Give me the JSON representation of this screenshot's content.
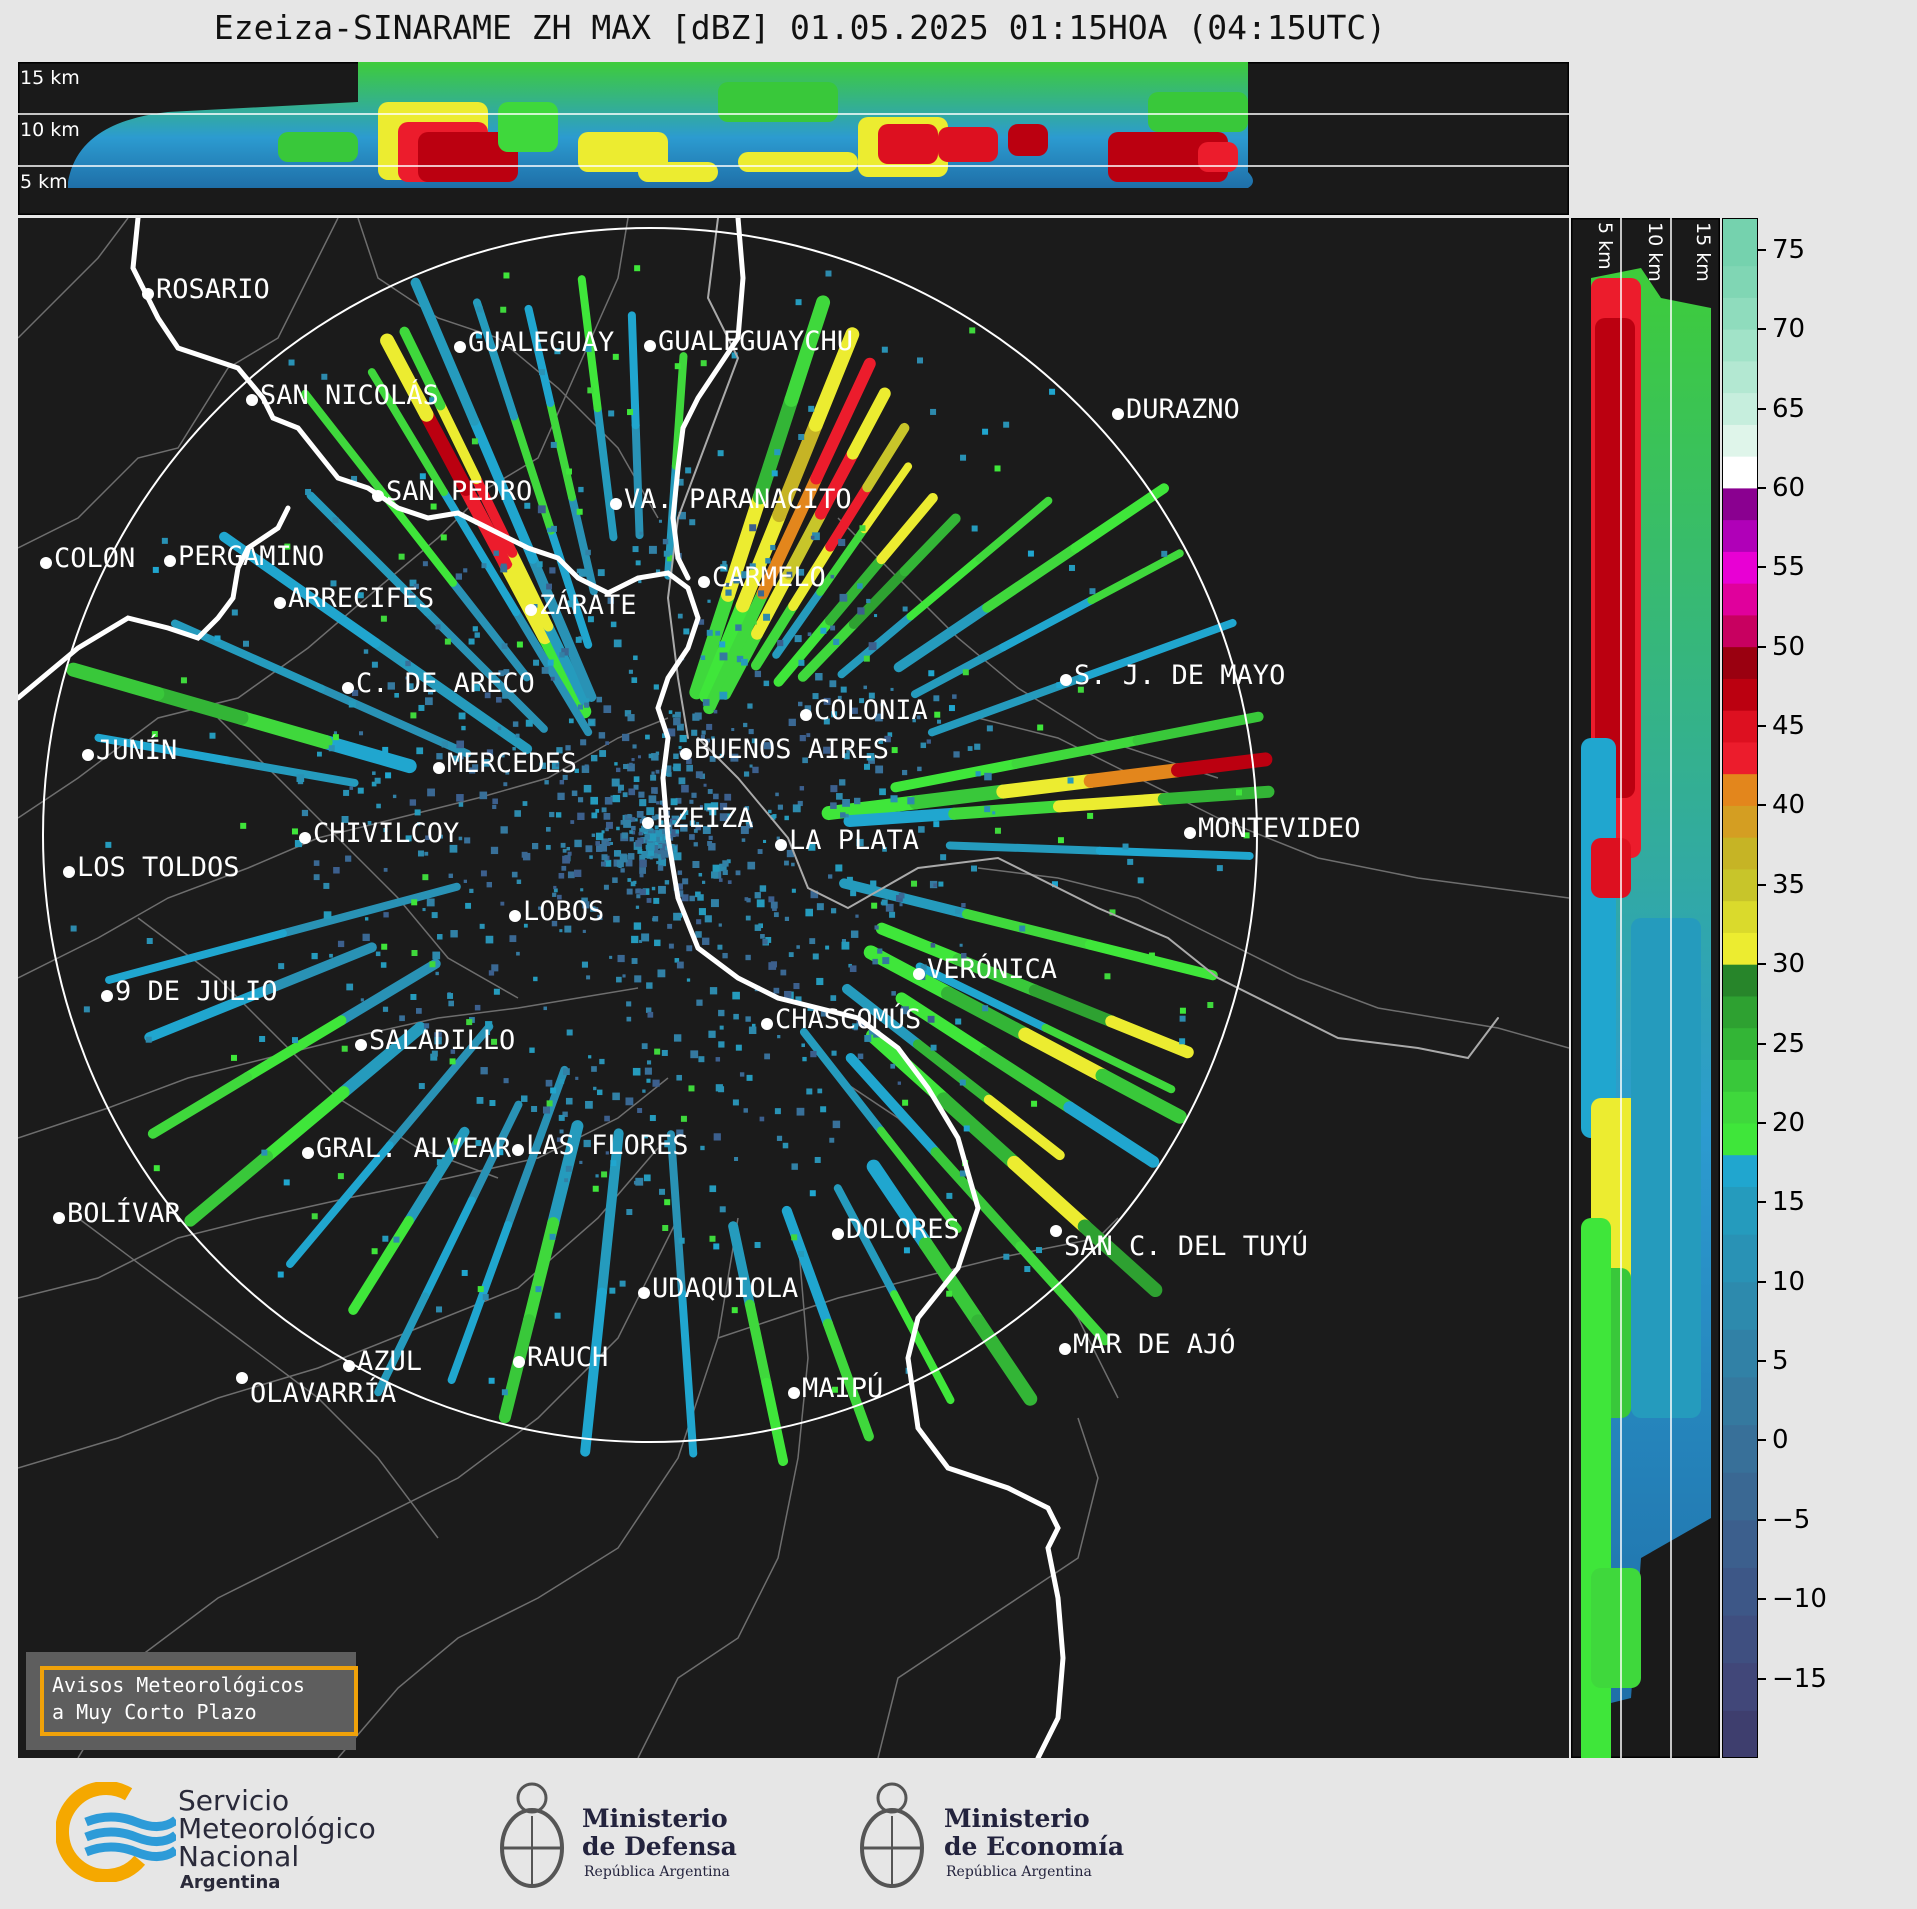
{
  "title": "Ezeiza-SINARAME ZH MAX [dBZ] 01.05.2025 01:15HOA (04:15UTC)",
  "top_panel": {
    "height_labels": [
      "15 km",
      "10 km",
      "5 km"
    ]
  },
  "side_panel": {
    "height_labels": [
      "5 km",
      "10 km",
      "15 km"
    ]
  },
  "colorbar": {
    "ticks": [
      "75",
      "70",
      "65",
      "60",
      "55",
      "50",
      "45",
      "40",
      "35",
      "30",
      "25",
      "20",
      "15",
      "10",
      "5",
      "0",
      "−5",
      "−10",
      "−15"
    ],
    "range": [
      -20,
      77
    ]
  },
  "cities": [
    {
      "name": "ROSARIO"
    },
    {
      "name": "GUALEGUAYCHU"
    },
    {
      "name": "GUALEGUAY"
    },
    {
      "name": "SAN NICOLÁS"
    },
    {
      "name": "DURAZNO"
    },
    {
      "name": "SAN PEDRO"
    },
    {
      "name": "VA. PARANACITO"
    },
    {
      "name": "COLON"
    },
    {
      "name": "PERGAMINO"
    },
    {
      "name": "CARMELO"
    },
    {
      "name": "ARRECIFES"
    },
    {
      "name": "ZÁRATE"
    },
    {
      "name": "S. J. DE MAYO"
    },
    {
      "name": "C. DE ARECO"
    },
    {
      "name": "COLONIA"
    },
    {
      "name": "BUENOS AIRES"
    },
    {
      "name": "JUNÍN"
    },
    {
      "name": "MERCEDES"
    },
    {
      "name": "EZEIZA"
    },
    {
      "name": "MONTEVIDEO"
    },
    {
      "name": "CHIVILCOY"
    },
    {
      "name": "LA PLATA"
    },
    {
      "name": "LOS TOLDOS"
    },
    {
      "name": "LOBOS"
    },
    {
      "name": "VERÓNICA"
    },
    {
      "name": "9 DE JULIO"
    },
    {
      "name": "CHASCOMÚS"
    },
    {
      "name": "SALADILLO"
    },
    {
      "name": "GRAL. ALVEAR"
    },
    {
      "name": "LAS FLORES"
    },
    {
      "name": "BOLÍVAR"
    },
    {
      "name": "DOLORES"
    },
    {
      "name": "SAN C. DEL TUYÚ"
    },
    {
      "name": "UDAQUIOLA"
    },
    {
      "name": "MAR DE AJÓ"
    },
    {
      "name": "AZUL"
    },
    {
      "name": "RAUCH"
    },
    {
      "name": "OLAVARRÍA"
    },
    {
      "name": "MAIPÚ"
    }
  ],
  "avisos": {
    "line1": "Avisos Meteorológicos",
    "line2": "a Muy Corto Plazo"
  },
  "logos": {
    "smn": {
      "line1": "Servicio",
      "line2": "Meteorológico",
      "line3": "Nacional",
      "line4": "Argentina"
    },
    "defensa": {
      "line1": "Ministerio",
      "line2": "de Defensa",
      "line3": "República Argentina"
    },
    "economia": {
      "line1": "Ministerio",
      "line2": "de Economía",
      "line3": "República Argentina"
    }
  }
}
